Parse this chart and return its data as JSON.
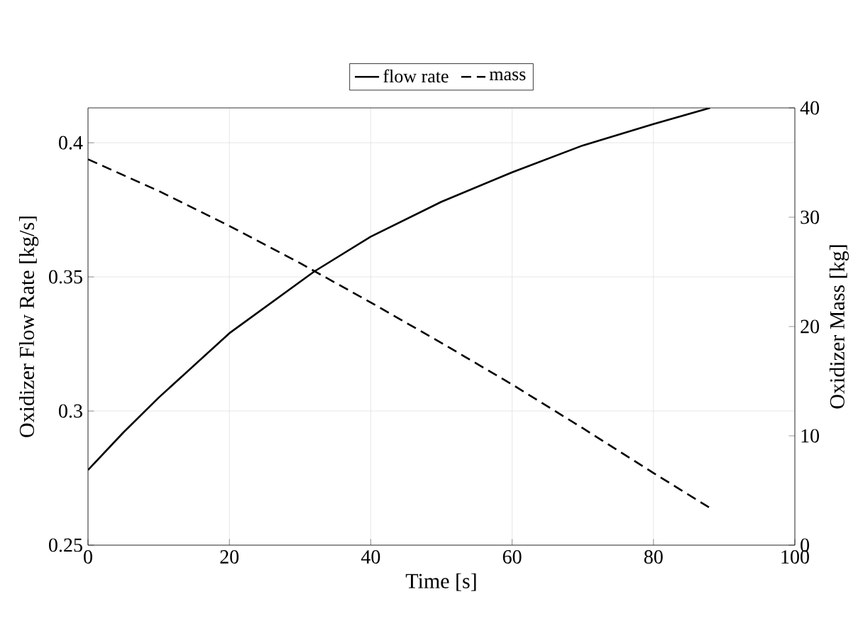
{
  "chart_data": {
    "type": "line",
    "xlabel": "Time [s]",
    "ylabel": "Oxidizer Flow Rate [kg/s]",
    "y2label": "Oxidizer Mass [kg]",
    "xlim": [
      0,
      100
    ],
    "xticks": [
      0,
      20,
      40,
      60,
      80,
      100
    ],
    "ylim": [
      0.25,
      0.413
    ],
    "yticks": [
      0.25,
      0.3,
      0.35,
      0.4
    ],
    "y2lim": [
      0,
      40
    ],
    "y2ticks": [
      0,
      10,
      20,
      30,
      40
    ],
    "grid": true,
    "legend": "top",
    "series": [
      {
        "name": "flow rate",
        "color": "#000000",
        "line_style": "solid",
        "x": [
          0,
          5,
          10,
          20,
          32,
          40,
          50,
          60,
          70,
          80,
          88
        ],
        "values": [
          0.278,
          0.292,
          0.305,
          0.329,
          0.352,
          0.365,
          0.378,
          0.389,
          0.399,
          0.407,
          0.413
        ]
      },
      {
        "name": "mass",
        "color": "#000000",
        "line_style": "dashed",
        "axis": "y2",
        "x": [
          0,
          10,
          20,
          30,
          40,
          50,
          60,
          70,
          80,
          88
        ],
        "values": [
          35.3,
          32.4,
          29.2,
          25.8,
          22.2,
          18.5,
          14.7,
          10.7,
          6.6,
          3.4
        ]
      }
    ]
  }
}
